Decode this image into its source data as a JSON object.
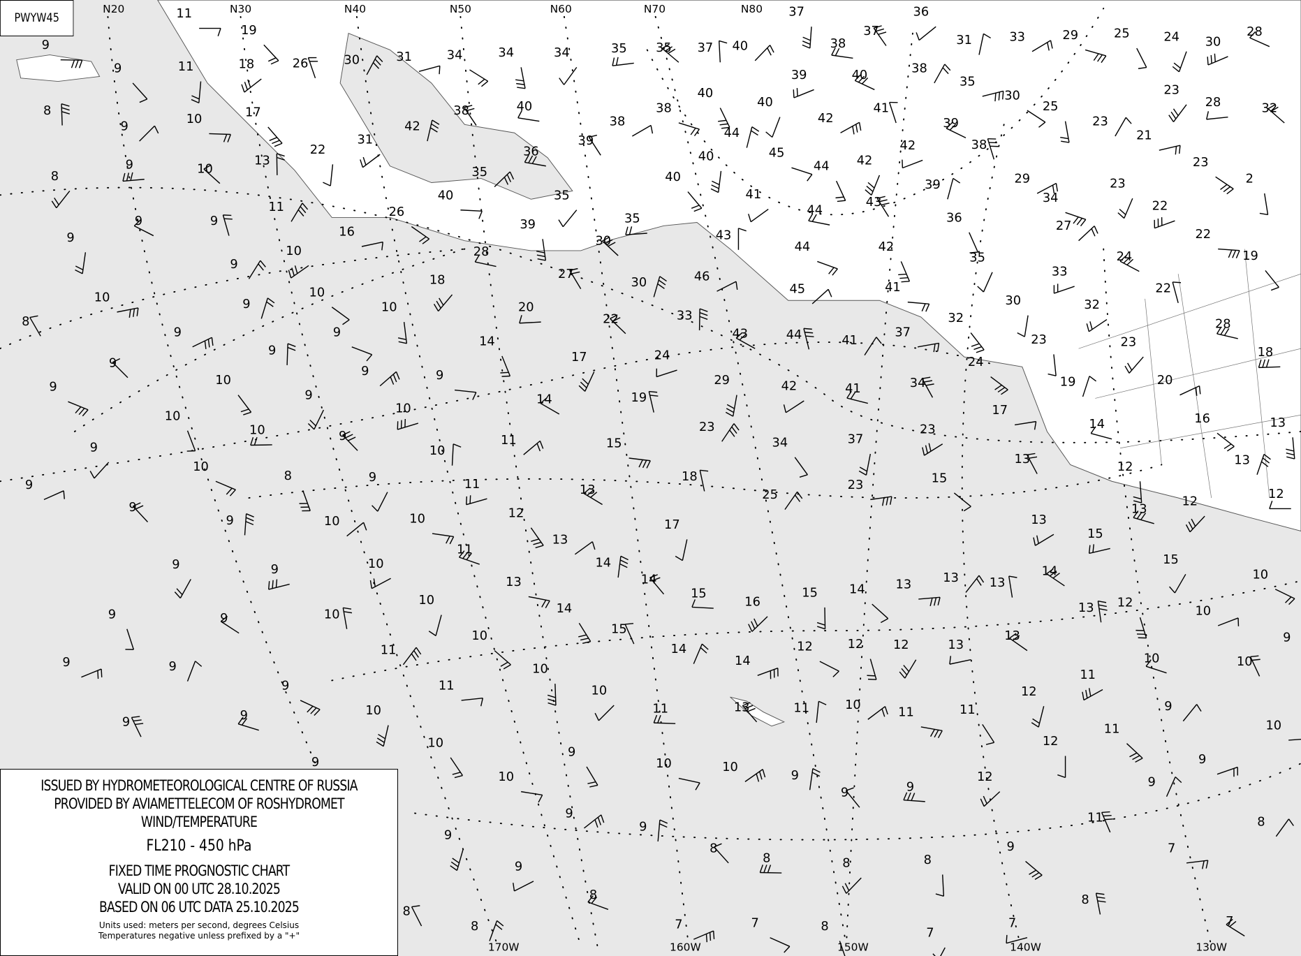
{
  "chart_id": "PWYW45",
  "legend": {
    "line1": "ISSUED BY HYDROMETEOROLOGICAL CENTRE OF RUSSIA",
    "line2": "PROVIDED BY AVIAMETTELECOM OF ROSHYDROMET",
    "line3": "WIND/TEMPERATURE",
    "level": "FL210 - 450 hPa",
    "chart_type": "FIXED TIME PROGNOSTIC CHART",
    "valid": "VALID ON 00 UTC 28.10.2025",
    "based": "BASED ON 06 UTC DATA 25.10.2025",
    "units": "Units used: meters per second, degrees Celsius",
    "note": "Temperatures negative unless prefixed by a \"+\""
  },
  "latitude_labels": [
    "N20",
    "N30",
    "N40",
    "N50",
    "N60",
    "N70",
    "N80"
  ],
  "longitude_labels": [
    "170W",
    "160W",
    "150W",
    "140W",
    "130W"
  ],
  "colors": {
    "ocean": "#e8e8e8",
    "land": "#ffffff",
    "ink": "#000000"
  },
  "temperature_labels": [
    "11",
    "19",
    "37",
    "36",
    "38",
    "37",
    "31",
    "33",
    "29",
    "25",
    "24",
    "30",
    "28",
    "26",
    "30",
    "31",
    "34",
    "34",
    "34",
    "35",
    "35",
    "37",
    "40",
    "9",
    "9",
    "11",
    "18",
    "40",
    "38",
    "42",
    "38",
    "38",
    "40",
    "40",
    "39",
    "40",
    "41",
    "38",
    "35",
    "30",
    "25",
    "23",
    "28",
    "32",
    "8",
    "9",
    "10",
    "17",
    "22",
    "31",
    "36",
    "39",
    "44",
    "42",
    "45",
    "44",
    "42",
    "42",
    "39",
    "38",
    "23",
    "21",
    "23",
    "2",
    "8",
    "9",
    "10",
    "13",
    "35",
    "40",
    "40",
    "40",
    "41",
    "44",
    "43",
    "39",
    "29",
    "34",
    "36",
    "23",
    "22",
    "9",
    "9",
    "11",
    "16",
    "26",
    "39",
    "35",
    "35",
    "30",
    "43",
    "27",
    "22",
    "19",
    "9",
    "10",
    "28",
    "27",
    "30",
    "46",
    "44",
    "42",
    "35",
    "33",
    "24",
    "22",
    "9",
    "10",
    "10",
    "10",
    "18",
    "20",
    "22",
    "33",
    "45",
    "41",
    "32",
    "30",
    "32",
    "28",
    "8",
    "9",
    "9",
    "9",
    "14",
    "17",
    "24",
    "43",
    "44",
    "41",
    "37",
    "24",
    "23",
    "23",
    "18",
    "9",
    "9",
    "9",
    "9",
    "10",
    "29",
    "42",
    "41",
    "34",
    "19",
    "20",
    "9",
    "10",
    "9",
    "10",
    "14",
    "19",
    "23",
    "17",
    "16",
    "13",
    "9",
    "10",
    "9",
    "10",
    "11",
    "15",
    "34",
    "37",
    "23",
    "14",
    "13",
    "13",
    "9",
    "10",
    "8",
    "9",
    "11",
    "13",
    "18",
    "25",
    "23",
    "15",
    "12",
    "12",
    "12",
    "9",
    "9",
    "10",
    "10",
    "12",
    "17",
    "13",
    "13",
    "8",
    "8",
    "7",
    "7",
    "8",
    "7",
    "7",
    "7",
    "8",
    "8",
    "7",
    "9",
    "8",
    "8",
    "8",
    "8",
    "9",
    "9",
    "10",
    "10",
    "10",
    "9",
    "9",
    "9",
    "9",
    "9",
    "9",
    "9",
    "9",
    "9",
    "9",
    "10",
    "11",
    "11",
    "10",
    "10",
    "10",
    "11",
    "13",
    "11",
    "10",
    "11",
    "11",
    "12",
    "11",
    "10",
    "10",
    "9",
    "10",
    "10",
    "12",
    "15",
    "15",
    "14",
    "13",
    "13",
    "13",
    "14",
    "15",
    "16",
    "15",
    "14",
    "14",
    "13",
    "13",
    "14",
    "10",
    "10",
    "11",
    "15",
    "14",
    "14",
    "12",
    "12",
    "12",
    "13",
    "13",
    "13",
    "9",
    "10",
    "11",
    "12",
    "12",
    "9",
    "9",
    "9",
    "10",
    "10",
    "9",
    "9",
    "9",
    "8",
    "11",
    "9",
    "9"
  ]
}
